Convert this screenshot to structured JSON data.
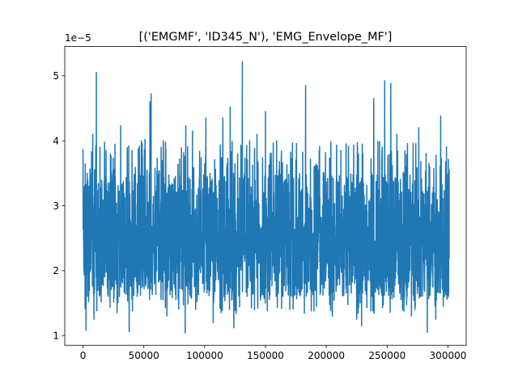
{
  "chart_data": {
    "type": "line",
    "title": "[('EMGMF', 'ID345_N'), 'EMG_Envelope_MF']",
    "xlabel": "",
    "ylabel": "",
    "y_offset_label": "1e−5",
    "xlim": [
      -15000,
      315000
    ],
    "ylim": [
      0.85,
      5.45
    ],
    "grid": false,
    "legend": "none",
    "x_ticks": [
      0,
      50000,
      100000,
      150000,
      200000,
      250000,
      300000
    ],
    "x_tick_labels": [
      "0",
      "50000",
      "100000",
      "150000",
      "200000",
      "250000",
      "300000"
    ],
    "y_ticks": [
      1,
      2,
      3,
      4,
      5
    ],
    "y_tick_labels": [
      "1",
      "2",
      "3",
      "4",
      "5"
    ],
    "series": [
      {
        "color": "#1f77b4",
        "x_range": [
          0,
          301000
        ],
        "min": 1.04,
        "max": 5.22,
        "typical_band": [
          1.6,
          3.5
        ],
        "peaks": [
          {
            "x": 0,
            "y": 3.87
          },
          {
            "x": 2500,
            "y": 1.08
          },
          {
            "x": 5000,
            "y": 3.3
          },
          {
            "x": 8000,
            "y": 4.1
          },
          {
            "x": 9000,
            "y": 1.25
          },
          {
            "x": 11000,
            "y": 5.05
          },
          {
            "x": 14000,
            "y": 3.9
          },
          {
            "x": 19000,
            "y": 3.85
          },
          {
            "x": 21000,
            "y": 3.2
          },
          {
            "x": 28000,
            "y": 1.35
          },
          {
            "x": 31000,
            "y": 4.23
          },
          {
            "x": 38000,
            "y": 1.06
          },
          {
            "x": 48000,
            "y": 4.0
          },
          {
            "x": 51000,
            "y": 4.02
          },
          {
            "x": 55000,
            "y": 4.6
          },
          {
            "x": 56000,
            "y": 4.72
          },
          {
            "x": 66000,
            "y": 4.0
          },
          {
            "x": 69000,
            "y": 1.3
          },
          {
            "x": 78000,
            "y": 3.5
          },
          {
            "x": 84000,
            "y": 1.04
          },
          {
            "x": 84500,
            "y": 4.23
          },
          {
            "x": 90000,
            "y": 4.15
          },
          {
            "x": 97000,
            "y": 3.2
          },
          {
            "x": 101000,
            "y": 4.35
          },
          {
            "x": 107000,
            "y": 1.2
          },
          {
            "x": 115000,
            "y": 4.35
          },
          {
            "x": 121000,
            "y": 4.52
          },
          {
            "x": 124000,
            "y": 1.12
          },
          {
            "x": 131000,
            "y": 5.22
          },
          {
            "x": 137000,
            "y": 4.0
          },
          {
            "x": 141000,
            "y": 1.4
          },
          {
            "x": 143000,
            "y": 4.1
          },
          {
            "x": 150000,
            "y": 4.45
          },
          {
            "x": 154000,
            "y": 3.8
          },
          {
            "x": 163000,
            "y": 3.75
          },
          {
            "x": 170000,
            "y": 1.4
          },
          {
            "x": 175000,
            "y": 3.7
          },
          {
            "x": 183000,
            "y": 4.85
          },
          {
            "x": 190000,
            "y": 3.6
          },
          {
            "x": 198000,
            "y": 3.5
          },
          {
            "x": 205000,
            "y": 1.3
          },
          {
            "x": 212000,
            "y": 3.85
          },
          {
            "x": 225000,
            "y": 1.25
          },
          {
            "x": 229000,
            "y": 1.15
          },
          {
            "x": 230000,
            "y": 3.8
          },
          {
            "x": 239000,
            "y": 4.65
          },
          {
            "x": 246000,
            "y": 3.9
          },
          {
            "x": 248000,
            "y": 4.92
          },
          {
            "x": 253000,
            "y": 4.88
          },
          {
            "x": 258000,
            "y": 4.1
          },
          {
            "x": 265000,
            "y": 3.6
          },
          {
            "x": 270000,
            "y": 1.3
          },
          {
            "x": 276000,
            "y": 4.2
          },
          {
            "x": 283000,
            "y": 1.05
          },
          {
            "x": 285000,
            "y": 3.6
          },
          {
            "x": 290000,
            "y": 1.25
          },
          {
            "x": 294000,
            "y": 4.38
          },
          {
            "x": 297000,
            "y": 1.6
          },
          {
            "x": 301000,
            "y": 3.55
          }
        ]
      }
    ]
  }
}
